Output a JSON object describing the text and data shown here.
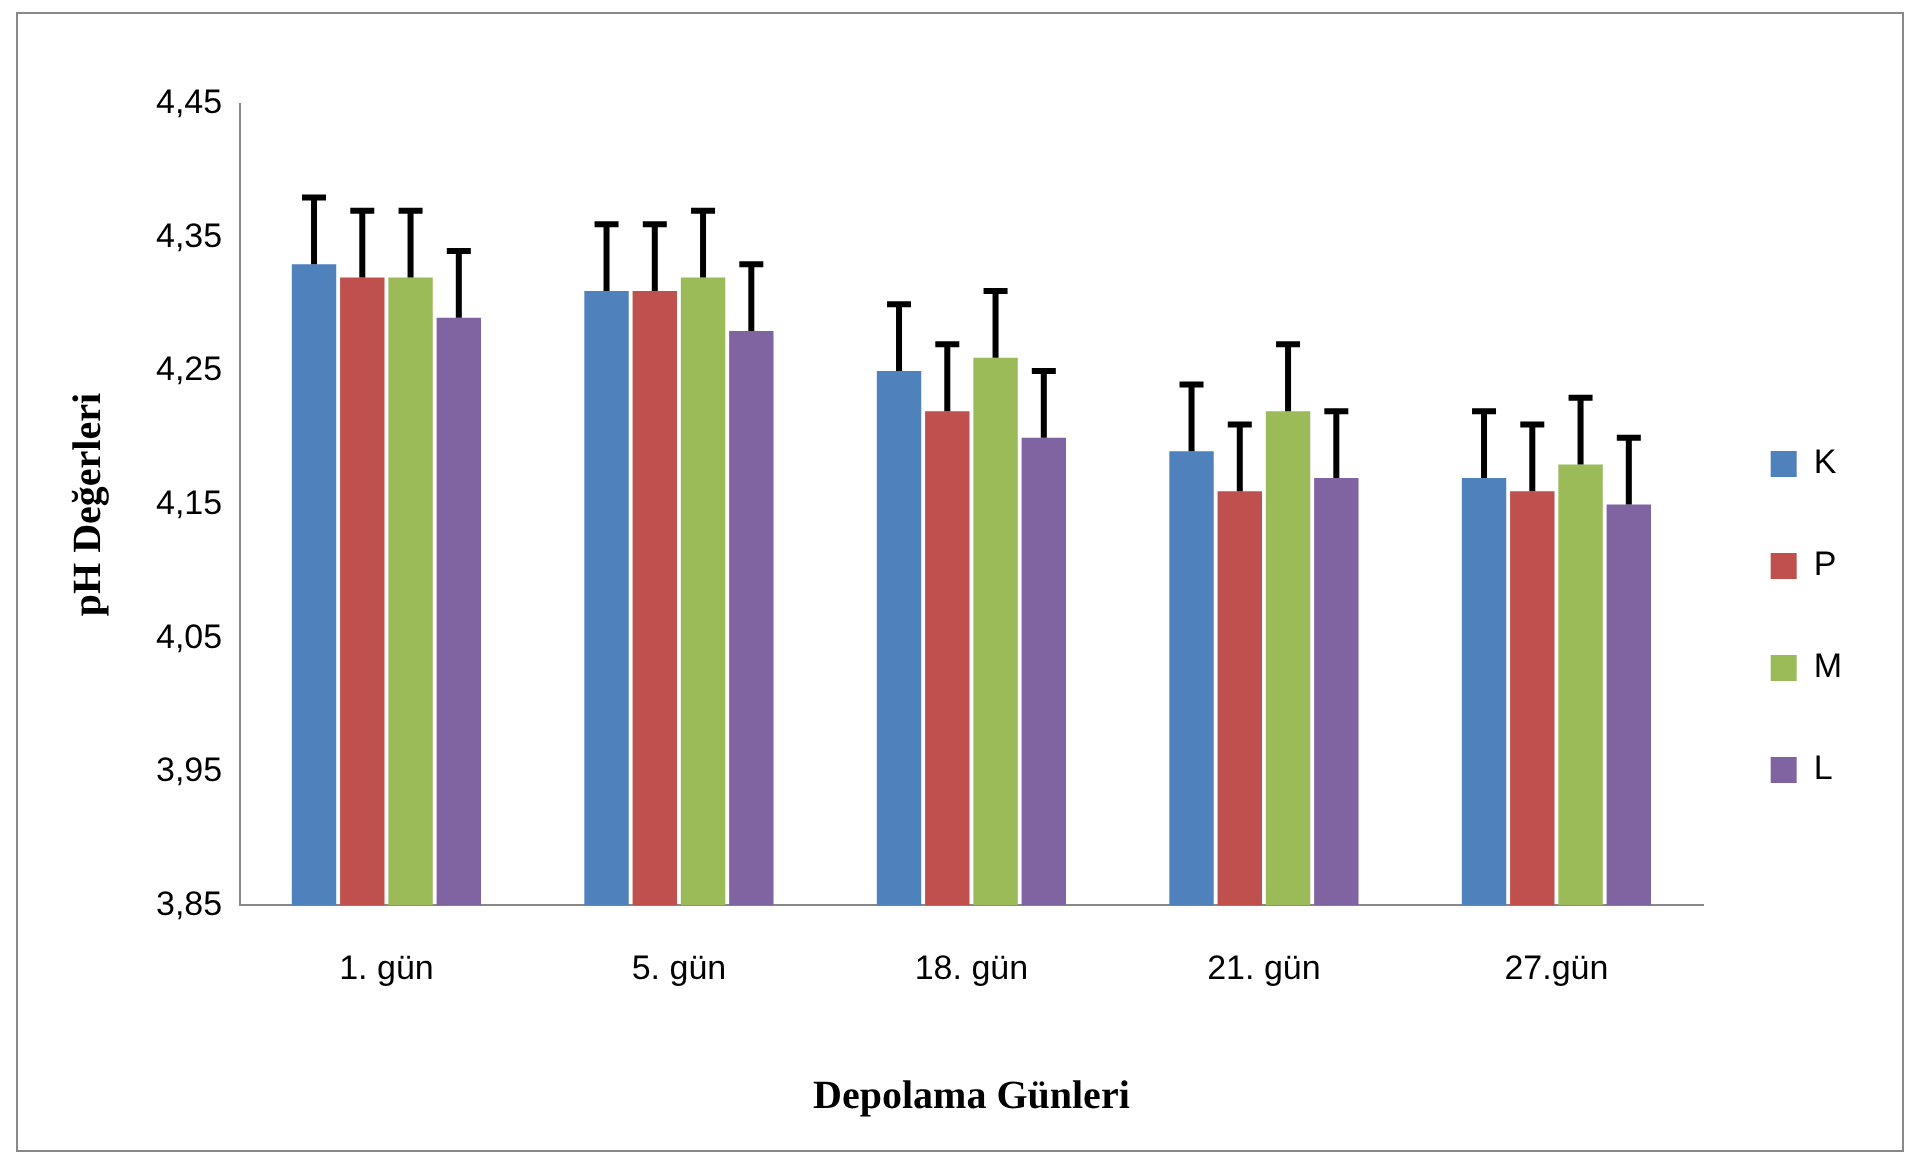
{
  "chart_data": {
    "type": "bar",
    "xlabel": "Depolama Günleri",
    "ylabel": "pH Değerleri",
    "categories": [
      "1. gün",
      "5. gün",
      "18. gün",
      "21. gün",
      "27.gün"
    ],
    "series": [
      {
        "name": "K",
        "color": "#4f81bd",
        "values": [
          4.33,
          4.31,
          4.25,
          4.19,
          4.17
        ],
        "errors": [
          [
            4.33,
            4.38
          ],
          [
            4.31,
            4.36
          ],
          [
            4.25,
            4.3
          ],
          [
            4.19,
            4.24
          ],
          [
            4.17,
            4.22
          ]
        ]
      },
      {
        "name": "P",
        "color": "#c0504d",
        "values": [
          4.32,
          4.31,
          4.22,
          4.16,
          4.16
        ],
        "errors": [
          [
            4.32,
            4.37
          ],
          [
            4.31,
            4.36
          ],
          [
            4.22,
            4.27
          ],
          [
            4.16,
            4.21
          ],
          [
            4.16,
            4.21
          ]
        ]
      },
      {
        "name": "M",
        "color": "#9bbb59",
        "values": [
          4.32,
          4.32,
          4.26,
          4.22,
          4.18
        ],
        "errors": [
          [
            4.32,
            4.37
          ],
          [
            4.32,
            4.37
          ],
          [
            4.26,
            4.31
          ],
          [
            4.22,
            4.27
          ],
          [
            4.18,
            4.23
          ]
        ]
      },
      {
        "name": "L",
        "color": "#8064a2",
        "values": [
          4.29,
          4.28,
          4.2,
          4.17,
          4.15
        ],
        "errors": [
          [
            4.29,
            4.34
          ],
          [
            4.28,
            4.33
          ],
          [
            4.2,
            4.25
          ],
          [
            4.17,
            4.22
          ],
          [
            4.15,
            4.2
          ]
        ]
      }
    ],
    "ylim": [
      3.85,
      4.45
    ],
    "yticks": [
      {
        "value": 3.85,
        "label": "3,85"
      },
      {
        "value": 3.95,
        "label": "3,95"
      },
      {
        "value": 4.05,
        "label": "4,05"
      },
      {
        "value": 4.15,
        "label": "4,15"
      },
      {
        "value": 4.25,
        "label": "4,25"
      },
      {
        "value": 4.35,
        "label": "4,35"
      },
      {
        "value": 4.45,
        "label": "4,45"
      }
    ],
    "grid": false,
    "legend": "right"
  }
}
